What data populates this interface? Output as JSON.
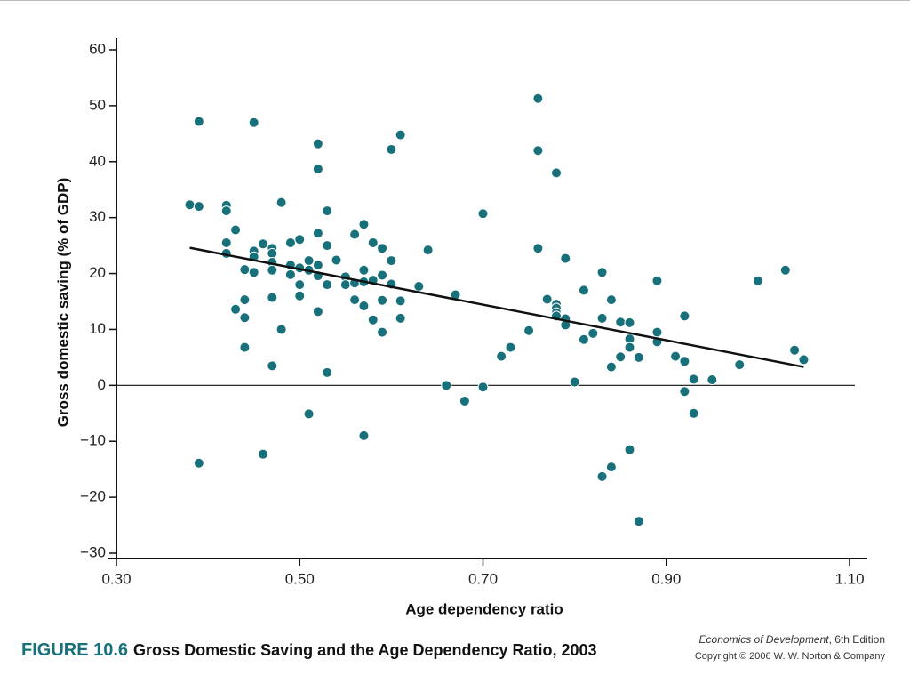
{
  "chart_data": {
    "type": "scatter",
    "figure_label": "FIGURE 10.6",
    "title": "Gross Domestic Saving and the Age Dependency Ratio, 2003",
    "xlabel": "Age dependency ratio",
    "ylabel": "Gross domestic saving (% of GDP)",
    "credit": [
      "Economics of Development",
      ", 6th Edition",
      "Copyright © 2006 W. W. Norton & Company"
    ],
    "color": "#17707a",
    "xlim": [
      0.3,
      1.1
    ],
    "ylim": [
      -30,
      60
    ],
    "xticks": [
      {
        "value": 0.3,
        "label": "0.30"
      },
      {
        "value": 0.5,
        "label": "0.50"
      },
      {
        "value": 0.7,
        "label": "0.70"
      },
      {
        "value": 0.9,
        "label": "0.90"
      },
      {
        "value": 1.1,
        "label": "1.10"
      }
    ],
    "yticks": [
      {
        "value": -30,
        "label": "−30"
      },
      {
        "value": -20,
        "label": "−20"
      },
      {
        "value": -10,
        "label": "−10"
      },
      0,
      10,
      20,
      30,
      40,
      50,
      60
    ],
    "trendline": {
      "x": [
        0.38,
        1.05
      ],
      "y": [
        24.6,
        3.3
      ]
    },
    "x": [
      0.38,
      0.39,
      0.39,
      0.39,
      0.42,
      0.42,
      0.42,
      0.42,
      0.43,
      0.43,
      0.44,
      0.44,
      0.44,
      0.44,
      0.45,
      0.45,
      0.45,
      0.45,
      0.46,
      0.46,
      0.47,
      0.47,
      0.47,
      0.47,
      0.47,
      0.47,
      0.48,
      0.48,
      0.49,
      0.49,
      0.49,
      0.5,
      0.5,
      0.5,
      0.5,
      0.51,
      0.51,
      0.51,
      0.52,
      0.52,
      0.52,
      0.52,
      0.52,
      0.52,
      0.53,
      0.53,
      0.53,
      0.53,
      0.54,
      0.55,
      0.55,
      0.56,
      0.56,
      0.56,
      0.57,
      0.57,
      0.57,
      0.57,
      0.57,
      0.58,
      0.58,
      0.58,
      0.59,
      0.59,
      0.59,
      0.59,
      0.6,
      0.6,
      0.6,
      0.61,
      0.61,
      0.61,
      0.63,
      0.64,
      0.67,
      0.66,
      0.68,
      0.7,
      0.7,
      0.72,
      0.73,
      0.75,
      0.76,
      0.76,
      0.76,
      0.77,
      0.78,
      0.78,
      0.78,
      0.78,
      0.78,
      0.79,
      0.79,
      0.79,
      0.8,
      0.81,
      0.81,
      0.82,
      0.83,
      0.83,
      0.83,
      0.84,
      0.84,
      0.84,
      0.85,
      0.85,
      0.86,
      0.86,
      0.86,
      0.86,
      0.87,
      0.87,
      0.89,
      0.89,
      0.89,
      0.91,
      0.92,
      0.92,
      0.92,
      0.93,
      0.93,
      0.95,
      0.98,
      1.0,
      1.03,
      1.04,
      1.05
    ],
    "values": [
      32.3,
      47.2,
      32,
      -13.9,
      32.2,
      31.2,
      25.5,
      23.6,
      27.8,
      13.6,
      20.7,
      15.3,
      12.1,
      6.8,
      47,
      24,
      23,
      20.2,
      25.3,
      -12.3,
      24.5,
      23.6,
      22,
      20.6,
      15.7,
      3.5,
      32.7,
      10,
      25.5,
      21.5,
      19.8,
      26.1,
      21,
      18,
      16,
      22.3,
      20.6,
      -5.1,
      43.2,
      38.7,
      27.2,
      21.5,
      19.6,
      13.2,
      31.2,
      25,
      18,
      2.3,
      22.4,
      19.4,
      18,
      27,
      18.3,
      15.3,
      28.8,
      20.6,
      18.5,
      14.2,
      -9,
      25.5,
      18.8,
      11.7,
      24.5,
      19.7,
      15.2,
      9.5,
      42.2,
      22.3,
      18.1,
      44.8,
      15.1,
      12,
      17.7,
      24.2,
      16.2,
      0,
      -2.8,
      30.7,
      -0.3,
      5.2,
      6.8,
      9.8,
      51.3,
      42,
      24.5,
      15.4,
      38,
      14.5,
      13.8,
      13,
      12.4,
      22.7,
      11.9,
      10.8,
      0.6,
      17,
      8.2,
      9.3,
      20.2,
      12,
      -16.3,
      15.3,
      3.3,
      -14.6,
      11.3,
      5.1,
      11.2,
      8.3,
      6.8,
      -11.5,
      5,
      -24.3,
      18.7,
      9.5,
      7.8,
      5.2,
      12.4,
      4.3,
      -1.1,
      1.1,
      -5,
      1,
      3.7,
      18.7,
      20.6,
      6.3,
      4.6
    ]
  }
}
